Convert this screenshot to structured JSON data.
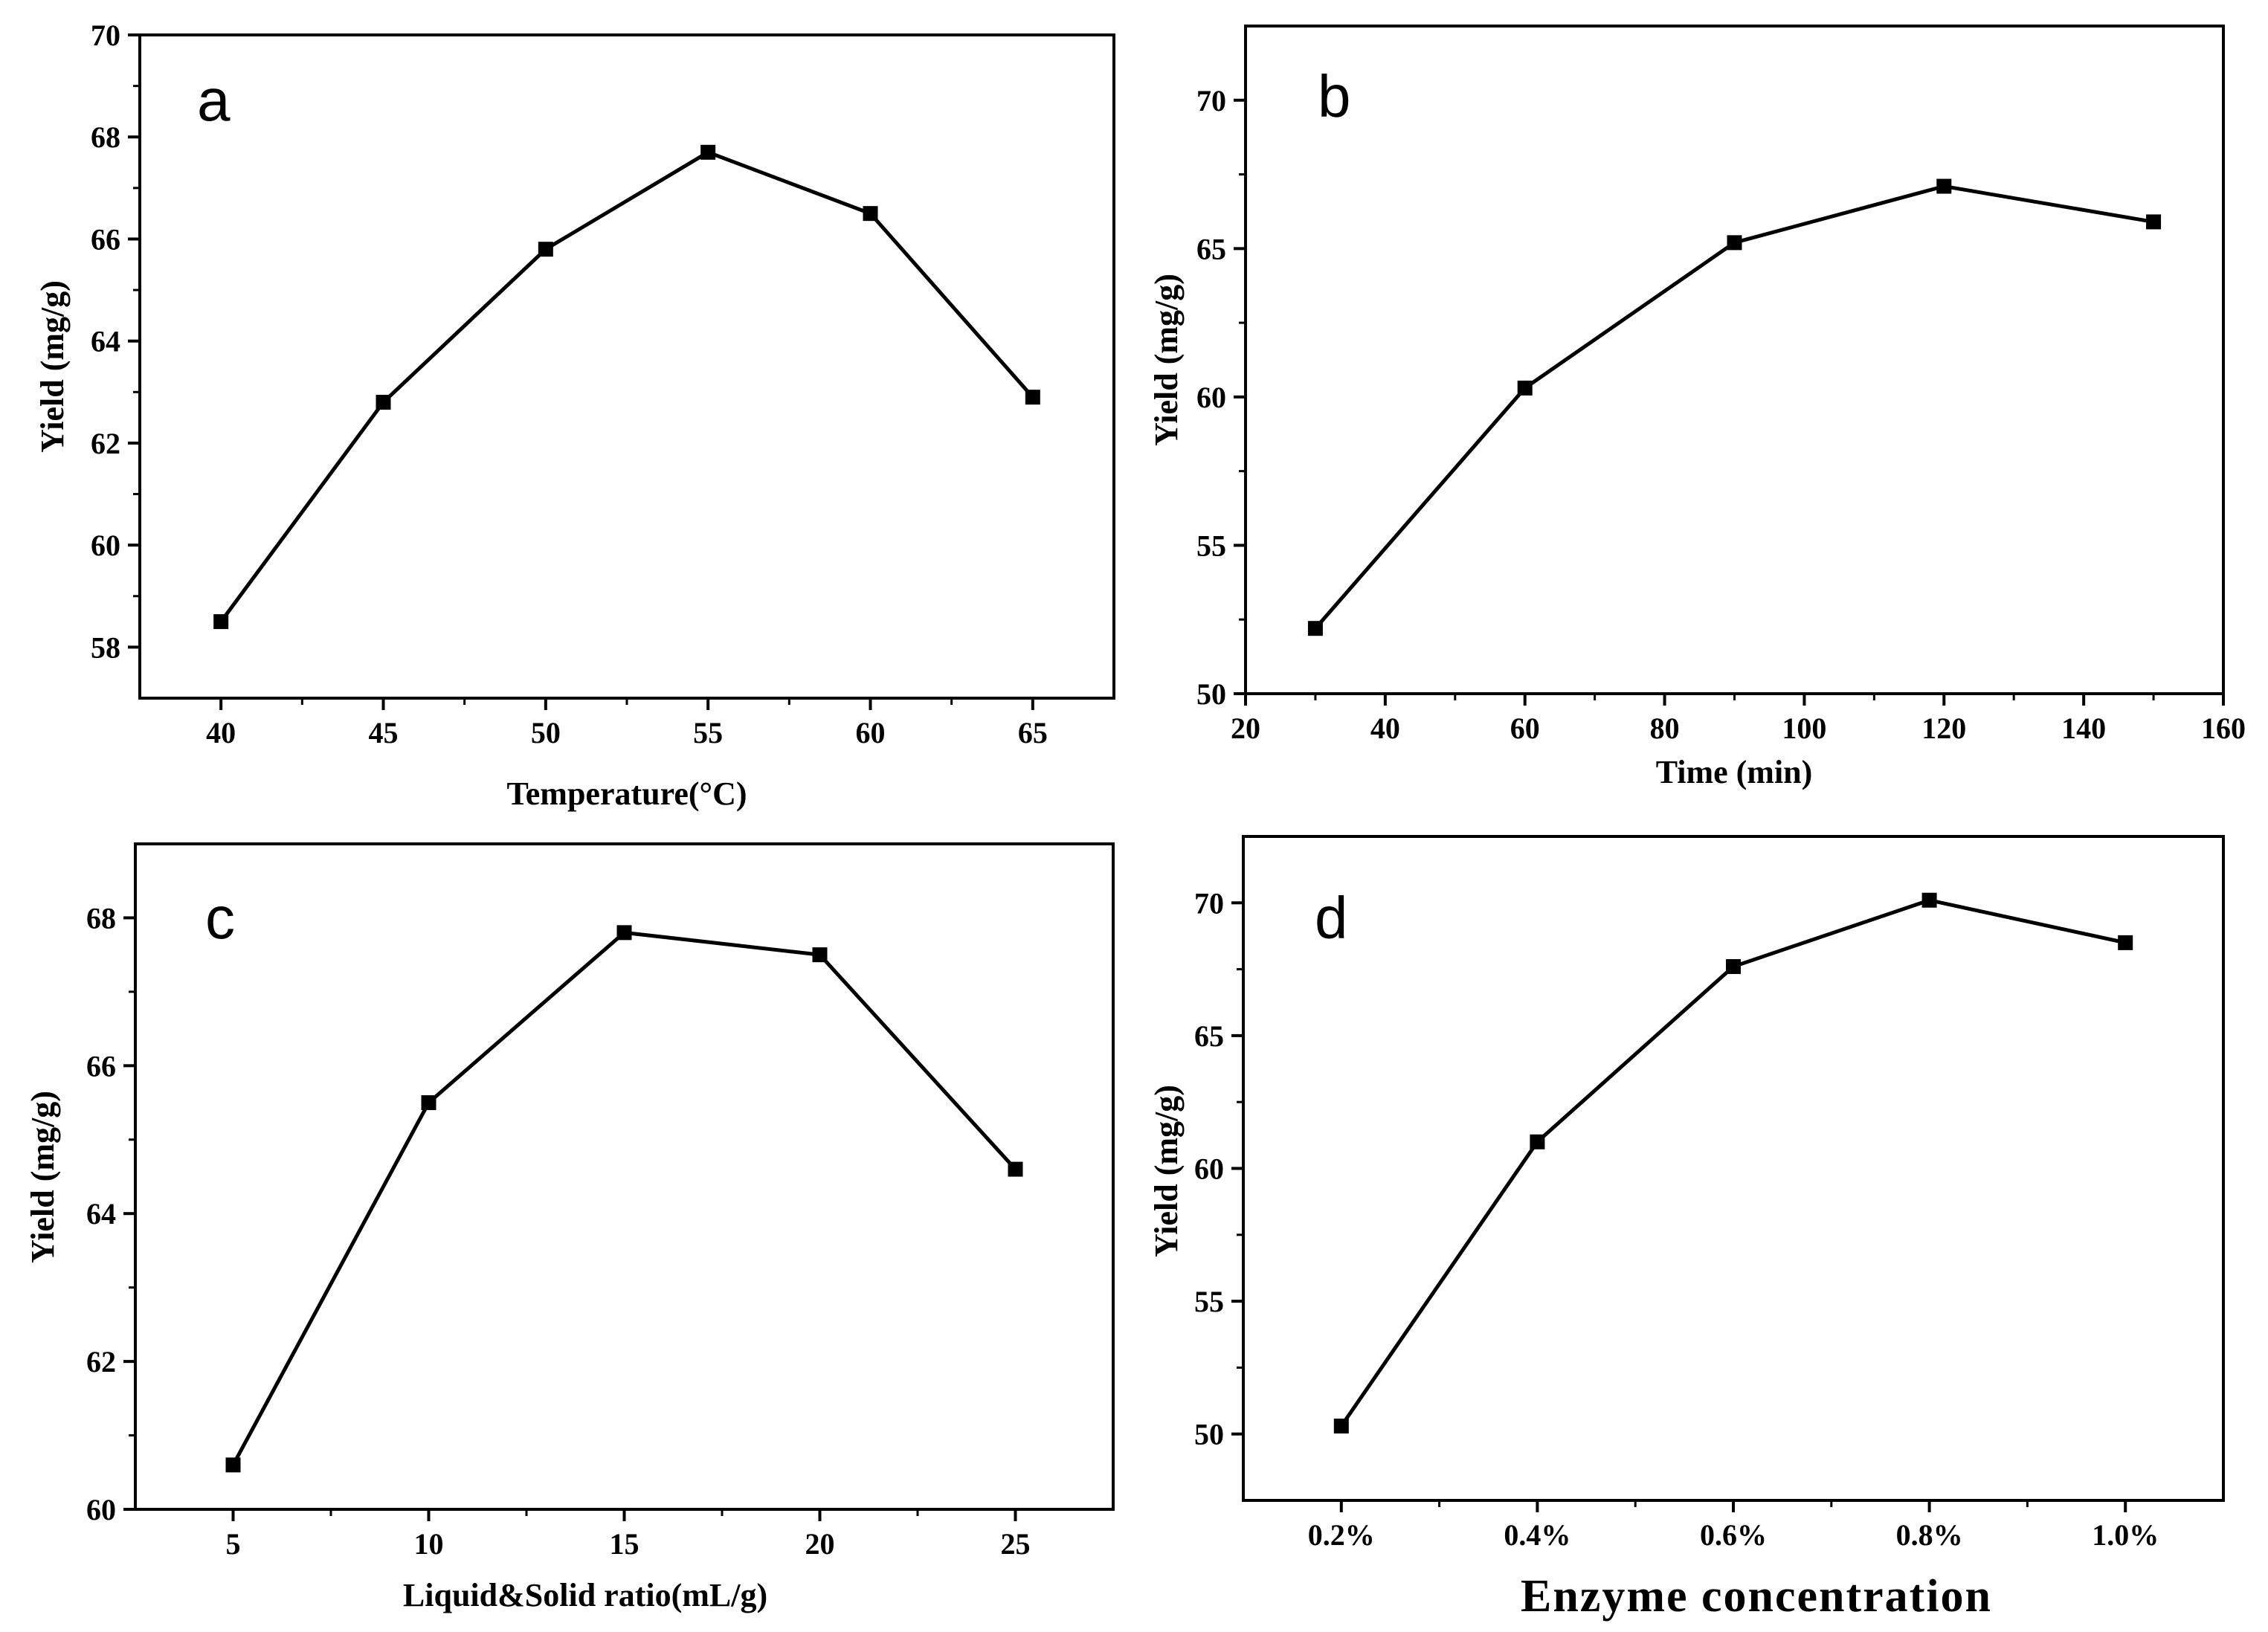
{
  "chart_data": [
    {
      "type": "line",
      "panel": "a",
      "xlabel": "Temperature(°C)",
      "ylabel": "Yield (mg/g)",
      "x": [
        40,
        45,
        50,
        55,
        60,
        65
      ],
      "x_tick_labels": [
        "40",
        "45",
        "50",
        "55",
        "60",
        "65"
      ],
      "values": [
        58.5,
        62.8,
        65.8,
        67.7,
        66.5,
        62.9
      ],
      "xlim": [
        37.5,
        67.5
      ],
      "ylim": [
        57,
        70
      ],
      "y_ticks": [
        58,
        60,
        62,
        64,
        66,
        68,
        70
      ],
      "marker": "square"
    },
    {
      "type": "line",
      "panel": "b",
      "xlabel": "Time (min)",
      "ylabel": "Yield (mg/g)",
      "x": [
        30,
        60,
        90,
        120,
        150
      ],
      "x_ticks": [
        20,
        40,
        60,
        80,
        100,
        120,
        140,
        160
      ],
      "x_tick_labels": [
        "20",
        "40",
        "60",
        "80",
        "100",
        "120",
        "140",
        "160"
      ],
      "values": [
        52.2,
        60.3,
        65.2,
        67.1,
        65.9
      ],
      "xlim": [
        20,
        160
      ],
      "ylim": [
        50,
        72.5
      ],
      "y_ticks": [
        50,
        55,
        60,
        65,
        70
      ],
      "marker": "square"
    },
    {
      "type": "line",
      "panel": "c",
      "xlabel": "Liquid&Solid ratio(mL/g)",
      "ylabel": "Yield (mg/g)",
      "x": [
        5,
        10,
        15,
        20,
        25
      ],
      "x_tick_labels": [
        "5",
        "10",
        "15",
        "20",
        "25"
      ],
      "values": [
        60.6,
        65.5,
        67.8,
        67.5,
        64.6
      ],
      "xlim": [
        2.5,
        27.5
      ],
      "ylim": [
        60,
        69
      ],
      "y_ticks": [
        60,
        62,
        64,
        66,
        68
      ],
      "marker": "square"
    },
    {
      "type": "line",
      "panel": "d",
      "xlabel": "Enzyme concentration",
      "ylabel": "Yield (mg/g)",
      "x": [
        0.2,
        0.4,
        0.6,
        0.8,
        1.0
      ],
      "x_tick_labels": [
        "0.2%",
        "0.4%",
        "0.6%",
        "0.8%",
        "1.0%"
      ],
      "values": [
        50.3,
        61.0,
        67.6,
        70.1,
        68.5
      ],
      "xlim": [
        0.1,
        1.1
      ],
      "ylim": [
        47.5,
        72.5
      ],
      "y_ticks": [
        50,
        55,
        60,
        65,
        70
      ],
      "marker": "square"
    }
  ]
}
